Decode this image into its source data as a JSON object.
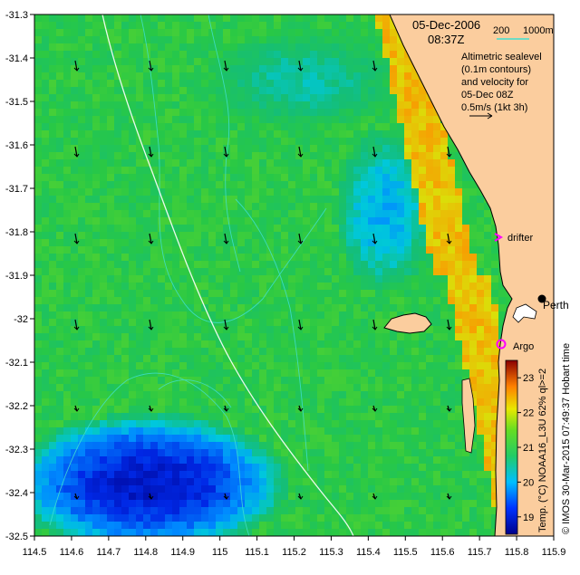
{
  "map": {
    "date": "05-Dec-2006",
    "time": "08:37Z",
    "bathy_labels": [
      "200",
      "1000m"
    ],
    "legend_lines": [
      "Altimetric sealevel",
      "(0.1m contours)",
      "and velocity for",
      "05-Dec 08Z",
      "0.5m/s (1kt 3h)"
    ],
    "lon_ticks": [
      "114.5",
      "114.6",
      "114.7",
      "114.8",
      "114.9",
      "115",
      "115.1",
      "115.2",
      "115.3",
      "115.4",
      "115.5",
      "115.6",
      "115.7",
      "115.8",
      "115.9"
    ],
    "lat_ticks": [
      "-31.3",
      "-31.4",
      "-31.5",
      "-31.6",
      "-31.7",
      "-31.8",
      "-31.9",
      "-32",
      "-32.1",
      "-32.2",
      "-32.3",
      "-32.4",
      "-32.5"
    ],
    "places": {
      "drifter": "drifter",
      "perth": "Perth",
      "argo": "Argo"
    },
    "colorbar": {
      "ticks": [
        "23",
        "22",
        "21",
        "20",
        "19"
      ],
      "caption": "Temp. (°C) NOAA16_L3U 62% ql>=2"
    },
    "credit": "© IMOS 30-Mar-2015 07:49:37 Hobart time",
    "colors": {
      "land": "#fbcd9e",
      "cyan_contour": "#40e0d0",
      "magenta": "#ff00ff"
    }
  },
  "chart_data": {
    "type": "heatmap",
    "title": "05-Dec-2006 08:37Z",
    "xlabel": "",
    "ylabel": "",
    "xlim": [
      114.5,
      115.9
    ],
    "ylim": [
      -32.5,
      -31.3
    ],
    "colorbar_range": [
      18.5,
      23.5
    ],
    "colorbar_ticks": [
      19,
      20,
      21,
      22,
      23
    ],
    "sst_regions_degC": [
      {
        "region": "offshore background",
        "value": 20.8
      },
      {
        "region": "cool pool south-west",
        "value": 18.8
      },
      {
        "region": "cool tongue near 115.4E -31.8",
        "value": 19.7
      },
      {
        "region": "nearshore warm strip",
        "value": 22.0
      }
    ],
    "markers": [
      {
        "name": "drifter",
        "lon": 115.75,
        "lat": -31.81
      },
      {
        "name": "Perth",
        "lon": 115.86,
        "lat": -31.96
      },
      {
        "name": "Argo",
        "lon": 115.74,
        "lat": -32.09
      }
    ]
  }
}
